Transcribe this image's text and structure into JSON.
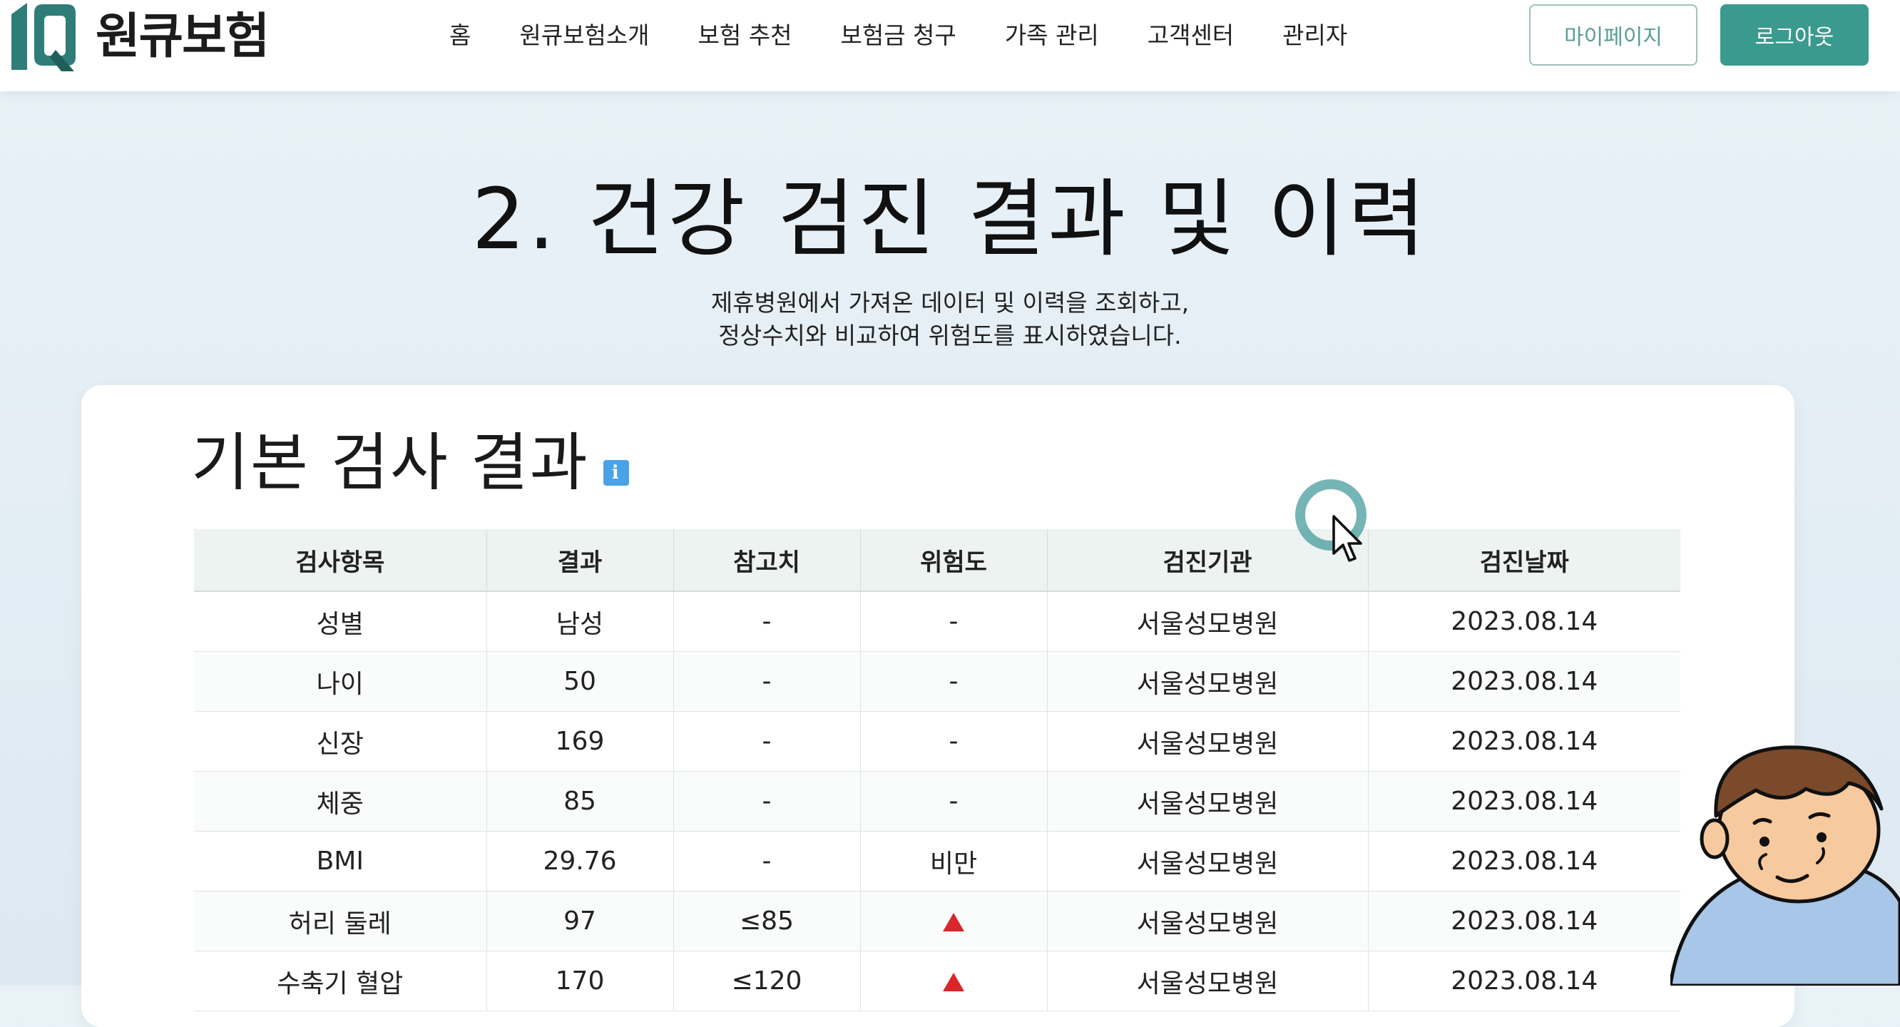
{
  "brand": {
    "logo_text": "원큐보험"
  },
  "nav": {
    "items": [
      "홈",
      "원큐보험소개",
      "보험 추천",
      "보험금 청구",
      "가족 관리",
      "고객센터",
      "관리자"
    ]
  },
  "header_buttons": {
    "mypage": "마이페이지",
    "logout": "로그아웃"
  },
  "hero": {
    "title": "2. 건강 검진 결과 및 이력",
    "desc_line1": "제휴병원에서 가져온 데이터 및 이력을 조회하고,",
    "desc_line2": "정상수치와 비교하여 위험도를 표시하였습니다."
  },
  "section": {
    "title": "기본 검사 결과",
    "info_icon": "info-icon",
    "info_glyph": "i"
  },
  "table": {
    "headers": [
      "검사항목",
      "결과",
      "참고치",
      "위험도",
      "검진기관",
      "검진날짜"
    ],
    "rows": [
      {
        "item": "성별",
        "result": "남성",
        "reference": "-",
        "risk": "-",
        "institution": "서울성모병원",
        "date": "2023.08.14"
      },
      {
        "item": "나이",
        "result": "50",
        "reference": "-",
        "risk": "-",
        "institution": "서울성모병원",
        "date": "2023.08.14"
      },
      {
        "item": "신장",
        "result": "169",
        "reference": "-",
        "risk": "-",
        "institution": "서울성모병원",
        "date": "2023.08.14"
      },
      {
        "item": "체중",
        "result": "85",
        "reference": "-",
        "risk": "-",
        "institution": "서울성모병원",
        "date": "2023.08.14"
      },
      {
        "item": "BMI",
        "result": "29.76",
        "reference": "-",
        "risk": "비만",
        "institution": "서울성모병원",
        "date": "2023.08.14"
      },
      {
        "item": "허리 둘레",
        "result": "97",
        "reference": "≤85",
        "risk": "▲",
        "institution": "서울성모병원",
        "date": "2023.08.14"
      },
      {
        "item": "수축기 혈압",
        "result": "170",
        "reference": "≤120",
        "risk": "▲",
        "institution": "서울성모병원",
        "date": "2023.08.14"
      }
    ]
  },
  "colors": {
    "brand_teal": "#3a9a8e",
    "risk_red": "#d8262b",
    "info_blue": "#4aa3e6"
  }
}
